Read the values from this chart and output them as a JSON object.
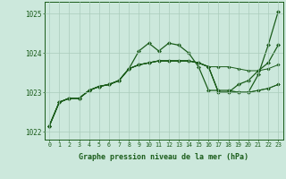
{
  "xlabel": "Graphe pression niveau de la mer (hPa)",
  "xlim": [
    -0.5,
    23.5
  ],
  "ylim": [
    1021.8,
    1025.3
  ],
  "yticks": [
    1022,
    1023,
    1024,
    1025
  ],
  "xticks": [
    0,
    1,
    2,
    3,
    4,
    5,
    6,
    7,
    8,
    9,
    10,
    11,
    12,
    13,
    14,
    15,
    16,
    17,
    18,
    19,
    20,
    21,
    22,
    23
  ],
  "bg_color": "#cce8dc",
  "grid_color": "#aaccbb",
  "line_color": "#1a5c1a",
  "lines": [
    [
      1022.15,
      1022.75,
      1022.85,
      1022.85,
      1023.05,
      1023.15,
      1023.2,
      1023.3,
      1023.6,
      1024.05,
      1024.25,
      1024.05,
      1024.25,
      1024.2,
      1024.0,
      1023.65,
      1023.05,
      1023.05,
      1023.05,
      1023.0,
      1023.0,
      1023.45,
      1024.2,
      1025.05
    ],
    [
      1022.15,
      1022.75,
      1022.85,
      1022.85,
      1023.05,
      1023.15,
      1023.2,
      1023.3,
      1023.6,
      1023.7,
      1023.75,
      1023.8,
      1023.8,
      1023.8,
      1023.8,
      1023.75,
      1023.65,
      1023.65,
      1023.65,
      1023.6,
      1023.55,
      1023.55,
      1023.6,
      1023.7
    ],
    [
      1022.15,
      1022.75,
      1022.85,
      1022.85,
      1023.05,
      1023.15,
      1023.2,
      1023.3,
      1023.6,
      1023.7,
      1023.75,
      1023.8,
      1023.8,
      1023.8,
      1023.8,
      1023.75,
      1023.65,
      1023.0,
      1023.0,
      1023.0,
      1023.0,
      1023.05,
      1023.1,
      1023.2
    ],
    [
      1022.15,
      1022.75,
      1022.85,
      1022.85,
      1023.05,
      1023.15,
      1023.2,
      1023.3,
      1023.6,
      1023.7,
      1023.75,
      1023.8,
      1023.8,
      1023.8,
      1023.8,
      1023.75,
      1023.65,
      1023.0,
      1023.0,
      1023.0,
      1023.0,
      1023.05,
      1023.1,
      1023.2
    ],
    [
      1022.15,
      1022.75,
      1022.85,
      1022.85,
      1023.05,
      1023.15,
      1023.2,
      1023.3,
      1023.6,
      1023.7,
      1023.75,
      1023.8,
      1023.8,
      1023.8,
      1023.8,
      1023.75,
      1023.65,
      1023.0,
      1023.0,
      1023.2,
      1023.3,
      1023.55,
      1023.75,
      1024.2
    ]
  ]
}
